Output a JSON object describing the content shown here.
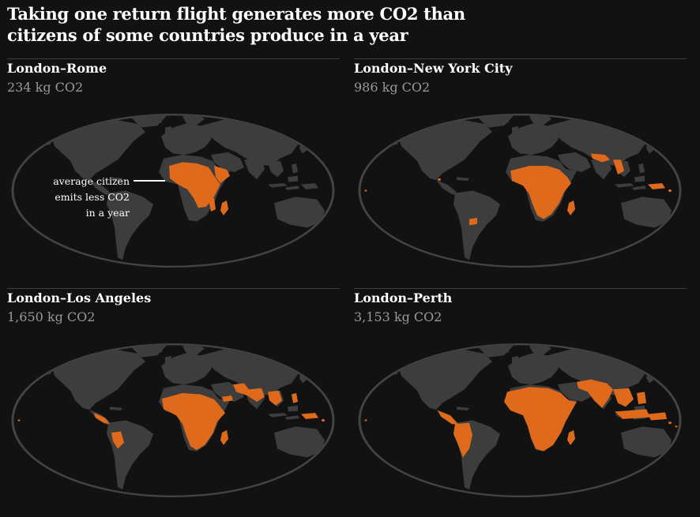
{
  "title": {
    "line1": "Taking one return flight generates more CO2 than",
    "line2": "citizens of some countries produce in a year"
  },
  "legend_annotation": {
    "line1": "average citizen",
    "line2": "emits less CO2",
    "line3": "in a year"
  },
  "colors": {
    "background": "#121212",
    "ocean": "#121212",
    "land": "#3d3d3d",
    "highlight": "#e06a1b",
    "graticule_edge": "#444444",
    "amount_text": "#9a9a9a"
  },
  "panels": [
    {
      "route": "London–Rome",
      "emissions": "234 kg CO2",
      "highlighted_countries": [
        "Mali",
        "Niger",
        "Chad",
        "Burkina Faso",
        "Sudan",
        "South Sudan",
        "Ethiopia",
        "Somalia",
        "DR Congo",
        "Central African Republic",
        "Madagascar",
        "Mozambique",
        "Uganda",
        "Rwanda",
        "Burundi",
        "Malawi"
      ]
    },
    {
      "route": "London–New York City",
      "emissions": "986 kg CO2",
      "highlighted_countries": [
        "Sub-Saharan Africa",
        "Nepal",
        "Bangladesh",
        "Myanmar",
        "Afghanistan",
        "Haiti",
        "Papua New Guinea",
        "Solomon Islands",
        "Paraguay"
      ]
    },
    {
      "route": "London–Los Angeles",
      "emissions": "1,650 kg CO2",
      "highlighted_countries": [
        "Sub-Saharan Africa",
        "Central America",
        "Colombia",
        "Peru",
        "Bolivia",
        "Pakistan",
        "Yemen",
        "India",
        "Bangladesh",
        "Myanmar",
        "Cambodia",
        "Philippines",
        "Papua New Guinea",
        "Pacific islands"
      ]
    },
    {
      "route": "London–Perth",
      "emissions": "3,153 kg CO2",
      "highlighted_countries": [
        "Africa",
        "Central America",
        "Colombia",
        "Peru",
        "Bolivia",
        "Brazil",
        "India",
        "Pakistan",
        "Afghanistan",
        "Southeast Asia",
        "Indonesia",
        "Philippines",
        "Papua New Guinea",
        "Pacific islands"
      ]
    }
  ]
}
